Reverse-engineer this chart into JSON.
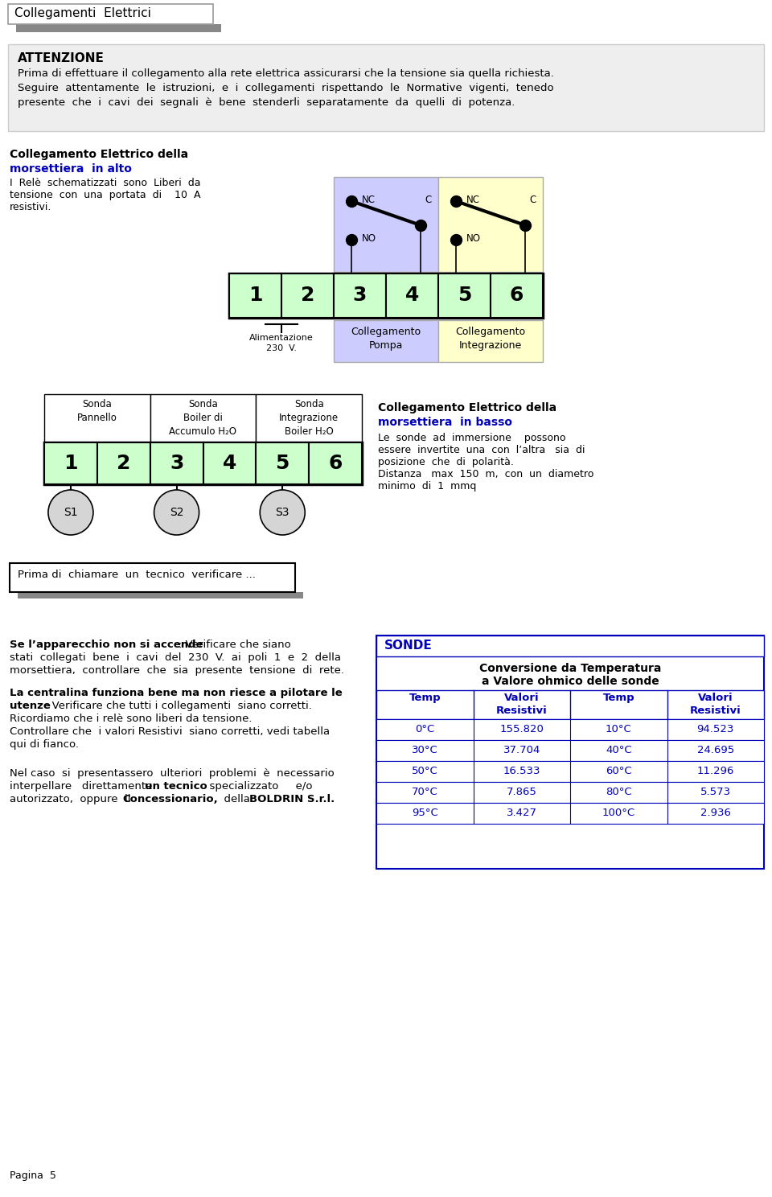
{
  "title": "Collegamenti  Elettrici",
  "bg_color": "#ffffff",
  "attention_title": "ATTENZIONE",
  "attention_text1": "Prima di effettuare il collegamento alla rete elettrica assicurarsi che la tensione sia quella richiesta.",
  "attention_text2": "Seguire  attentamente  le  istruzioni,  e  i  collegamenti  rispettando  le  Normative  vigenti,  tenedo",
  "attention_text3": "presente  che  i  cavi  dei  segnali  è  bene  stenderli  separatamente  da  quelli  di  potenza.",
  "section1_title_black": "Collegamento Elettrico della",
  "section1_title_blue": "morsettiera  in alto",
  "section1_body1": "I  Relè  schematizzati  sono  Liberi  da",
  "section1_body2": "tensione  con  una  portata  di    10  A",
  "section1_body3": "resistivi.",
  "section2_title_black": "Collegamento Elettrico della",
  "section2_title_blue": "morsettiera  in basso",
  "section2_body1": "Le  sonde  ad  immersione    possono",
  "section2_body2": "essere  invertite  una  con  l’altra   sia  di",
  "section2_body3": "posizione  che  di  polarità.",
  "section2_body4": "Distanza   max  150  m,  con  un  diametro",
  "section2_body5": "minimo  di  1  mmq",
  "sonda_label1": "Sonda\nPannello",
  "sonda_label2": "Sonda\nBoiler di\nAccumulo H₂O",
  "sonda_label3": "Sonda\nIntegrazione\nBoiler H₂O",
  "s_labels": [
    "S1",
    "S2",
    "S3"
  ],
  "box3_title": "Prima di  chiamare  un  tecnico  verificare ...",
  "sonde_title": "SONDE",
  "sonde_subtitle1": "Conversione da Temperatura",
  "sonde_subtitle2": "a Valore ohmico delle sonde",
  "table_data": [
    [
      "0°C",
      "155.820",
      "10°C",
      "94.523"
    ],
    [
      "30°C",
      "37.704",
      "40°C",
      "24.695"
    ],
    [
      "50°C",
      "16.533",
      "60°C",
      "11.296"
    ],
    [
      "70°C",
      "7.865",
      "80°C",
      "5.573"
    ],
    [
      "95°C",
      "3.427",
      "100°C",
      "2.936"
    ]
  ],
  "pagina": "Pagina  5",
  "color_blue": "#0000bb",
  "color_green_light": "#ccffcc",
  "color_purple_light": "#ccccff",
  "color_yellow_light": "#ffffcc",
  "color_gray": "#888888",
  "color_attn_bg": "#eeeeee"
}
